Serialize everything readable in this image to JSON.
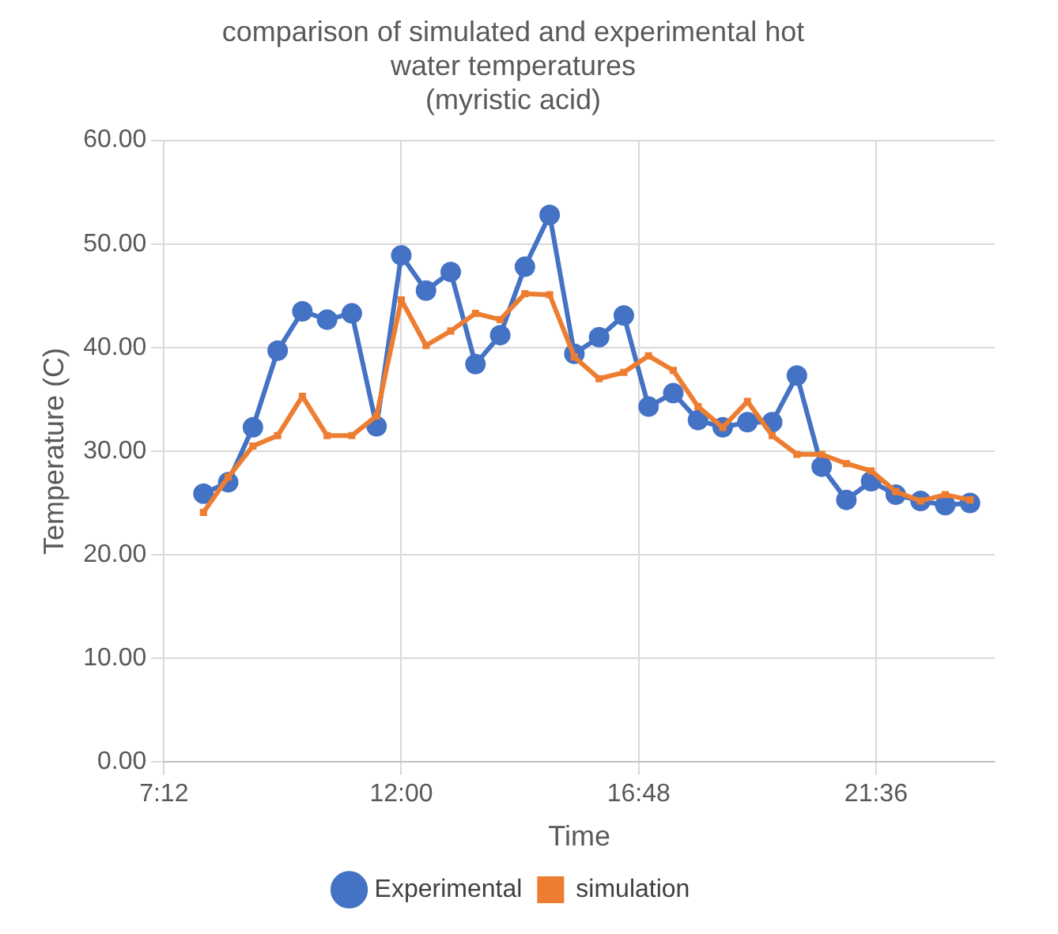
{
  "chart_data": {
    "type": "line",
    "title": "comparison of simulated and experimental hot water temperatures (myristic acid)",
    "xlabel": "Time",
    "ylabel": "Temperature (C)",
    "x": [
      8,
      8.5,
      9,
      9.5,
      10,
      10.5,
      11,
      11.5,
      12,
      12.5,
      13,
      13.5,
      14,
      14.5,
      15,
      15.5,
      16,
      16.5,
      17,
      17.5,
      18,
      18.5,
      19,
      19.5,
      20,
      20.5,
      21,
      21.5,
      22,
      22.5,
      23,
      23.5
    ],
    "series": [
      {
        "name": "Experimental",
        "color": "#4472c4",
        "marker": "circle",
        "values": [
          25.9,
          27.0,
          32.3,
          39.7,
          43.5,
          42.7,
          43.3,
          32.4,
          48.9,
          45.5,
          47.3,
          38.4,
          41.2,
          47.8,
          52.8,
          39.4,
          41.0,
          43.1,
          34.3,
          35.6,
          33.0,
          32.3,
          32.8,
          32.8,
          37.3,
          28.5,
          25.3,
          27.1,
          25.8,
          25.2,
          24.8,
          25.0
        ]
      },
      {
        "name": "simulation",
        "color": "#ed7d31",
        "marker": "square",
        "values": [
          24.1,
          27.5,
          30.5,
          31.5,
          35.3,
          31.5,
          31.5,
          33.4,
          44.6,
          40.2,
          41.6,
          43.3,
          42.7,
          45.2,
          45.1,
          39.1,
          37.0,
          37.6,
          39.2,
          37.8,
          34.3,
          32.3,
          34.8,
          31.5,
          29.7,
          29.7,
          28.8,
          28.1,
          26.1,
          25.2,
          25.8,
          25.3
        ]
      }
    ],
    "xlim": [
      7.2,
      24
    ],
    "xticks": [
      {
        "value": 7.2,
        "label": "7:12"
      },
      {
        "value": 12,
        "label": "12:00"
      },
      {
        "value": 16.8,
        "label": "16:48"
      },
      {
        "value": 21.6,
        "label": "21:36"
      }
    ],
    "ylim": [
      0,
      60
    ],
    "yticks": [
      {
        "value": 0,
        "label": "0.00"
      },
      {
        "value": 10,
        "label": "10.00"
      },
      {
        "value": 20,
        "label": "20.00"
      },
      {
        "value": 30,
        "label": "30.00"
      },
      {
        "value": 40,
        "label": "40.00"
      },
      {
        "value": 50,
        "label": "50.00"
      },
      {
        "value": 60,
        "label": "60.00"
      }
    ],
    "grid": true,
    "legend": "bottom"
  }
}
